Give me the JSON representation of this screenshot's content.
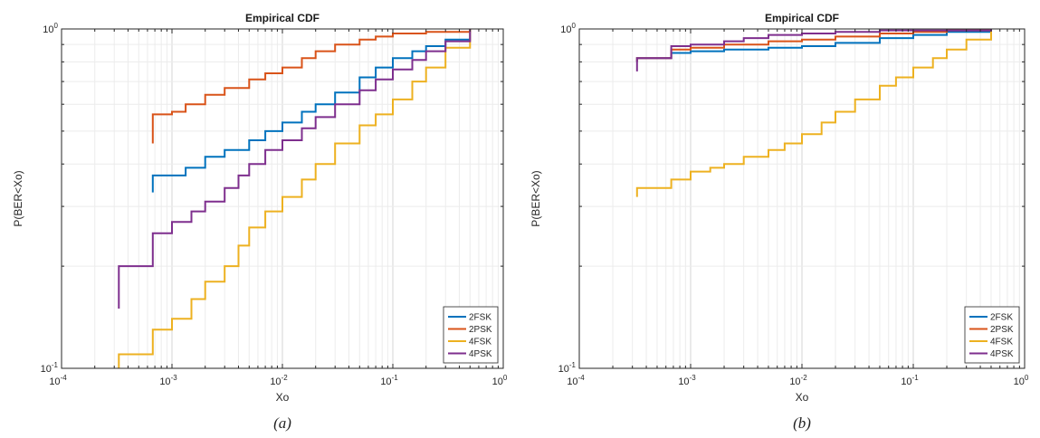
{
  "chart_data": [
    {
      "type": "line",
      "title": "Empirical CDF",
      "xlabel": "Xo",
      "ylabel": "P(BER<Xo)",
      "caption": "(a)",
      "x_scale": "log",
      "y_scale": "log",
      "xlim": [
        0.0001,
        1
      ],
      "ylim": [
        0.1,
        1
      ],
      "x_ticks": [
        {
          "base": "10",
          "exp": "-4"
        },
        {
          "base": "10",
          "exp": "-3"
        },
        {
          "base": "10",
          "exp": "-2"
        },
        {
          "base": "10",
          "exp": "-1"
        },
        {
          "base": "10",
          "exp": "0"
        }
      ],
      "y_ticks": [
        {
          "base": "10",
          "exp": "-1"
        },
        {
          "base": "10",
          "exp": "0"
        }
      ],
      "grid": true,
      "legend_position": "bottom-right",
      "series": [
        {
          "name": "2FSK",
          "color": "#0072BD",
          "x": [
            0.00067,
            0.00067,
            0.00133,
            0.002,
            0.003,
            0.005,
            0.007,
            0.01,
            0.015,
            0.02,
            0.03,
            0.05,
            0.07,
            0.1,
            0.15,
            0.2,
            0.3,
            0.5
          ],
          "y": [
            0.33,
            0.37,
            0.39,
            0.42,
            0.44,
            0.47,
            0.5,
            0.53,
            0.57,
            0.6,
            0.65,
            0.72,
            0.77,
            0.82,
            0.86,
            0.89,
            0.93,
            1.0
          ]
        },
        {
          "name": "2PSK",
          "color": "#D95319",
          "x": [
            0.00067,
            0.00067,
            0.001,
            0.00133,
            0.002,
            0.003,
            0.005,
            0.007,
            0.01,
            0.015,
            0.02,
            0.03,
            0.05,
            0.07,
            0.1,
            0.2,
            0.5
          ],
          "y": [
            0.46,
            0.56,
            0.57,
            0.6,
            0.64,
            0.67,
            0.71,
            0.74,
            0.77,
            0.82,
            0.86,
            0.9,
            0.93,
            0.95,
            0.97,
            0.98,
            1.0
          ]
        },
        {
          "name": "4FSK",
          "color": "#EDB120",
          "x": [
            0.00033,
            0.00033,
            0.00067,
            0.001,
            0.0015,
            0.002,
            0.003,
            0.004,
            0.005,
            0.007,
            0.01,
            0.015,
            0.02,
            0.03,
            0.05,
            0.07,
            0.1,
            0.15,
            0.2,
            0.3,
            0.5
          ],
          "y": [
            0.1,
            0.11,
            0.13,
            0.14,
            0.16,
            0.18,
            0.2,
            0.23,
            0.26,
            0.29,
            0.32,
            0.36,
            0.4,
            0.46,
            0.52,
            0.56,
            0.62,
            0.7,
            0.77,
            0.88,
            1.0
          ]
        },
        {
          "name": "4PSK",
          "color": "#7E2F8E",
          "x": [
            0.00033,
            0.00033,
            0.00067,
            0.001,
            0.0015,
            0.002,
            0.003,
            0.004,
            0.005,
            0.007,
            0.01,
            0.015,
            0.02,
            0.03,
            0.05,
            0.07,
            0.1,
            0.15,
            0.2,
            0.3,
            0.5
          ],
          "y": [
            0.15,
            0.2,
            0.25,
            0.27,
            0.29,
            0.31,
            0.34,
            0.37,
            0.4,
            0.44,
            0.47,
            0.51,
            0.55,
            0.6,
            0.66,
            0.71,
            0.76,
            0.81,
            0.86,
            0.92,
            1.0
          ]
        }
      ]
    },
    {
      "type": "line",
      "title": "Empirical CDF",
      "xlabel": "Xo",
      "ylabel": "P(BER<Xo)",
      "caption": "(b)",
      "x_scale": "log",
      "y_scale": "log",
      "xlim": [
        0.0001,
        1
      ],
      "ylim": [
        0.1,
        1
      ],
      "x_ticks": [
        {
          "base": "10",
          "exp": "-4"
        },
        {
          "base": "10",
          "exp": "-3"
        },
        {
          "base": "10",
          "exp": "-2"
        },
        {
          "base": "10",
          "exp": "-1"
        },
        {
          "base": "10",
          "exp": "0"
        }
      ],
      "y_ticks": [
        {
          "base": "10",
          "exp": "-1"
        },
        {
          "base": "10",
          "exp": "0"
        }
      ],
      "grid": true,
      "legend_position": "bottom-right",
      "series": [
        {
          "name": "2FSK",
          "color": "#0072BD",
          "x": [
            0.00033,
            0.00033,
            0.00067,
            0.001,
            0.002,
            0.005,
            0.01,
            0.02,
            0.05,
            0.1,
            0.2,
            0.5
          ],
          "y": [
            0.8,
            0.82,
            0.85,
            0.86,
            0.87,
            0.88,
            0.89,
            0.91,
            0.94,
            0.96,
            0.98,
            1.0
          ]
        },
        {
          "name": "2PSK",
          "color": "#D95319",
          "x": [
            0.00033,
            0.00033,
            0.00067,
            0.001,
            0.002,
            0.005,
            0.01,
            0.02,
            0.05,
            0.1,
            0.2,
            0.5
          ],
          "y": [
            0.8,
            0.82,
            0.87,
            0.88,
            0.9,
            0.92,
            0.93,
            0.95,
            0.97,
            0.98,
            0.99,
            1.0
          ]
        },
        {
          "name": "4FSK",
          "color": "#EDB120",
          "x": [
            0.00033,
            0.00033,
            0.00067,
            0.001,
            0.0015,
            0.002,
            0.003,
            0.005,
            0.007,
            0.01,
            0.015,
            0.02,
            0.03,
            0.05,
            0.07,
            0.1,
            0.15,
            0.2,
            0.3,
            0.5
          ],
          "y": [
            0.32,
            0.34,
            0.36,
            0.38,
            0.39,
            0.4,
            0.42,
            0.44,
            0.46,
            0.49,
            0.53,
            0.57,
            0.62,
            0.68,
            0.72,
            0.77,
            0.82,
            0.87,
            0.93,
            1.0
          ]
        },
        {
          "name": "4PSK",
          "color": "#7E2F8E",
          "x": [
            0.00033,
            0.00033,
            0.00067,
            0.001,
            0.002,
            0.003,
            0.005,
            0.01,
            0.02,
            0.05,
            0.5
          ],
          "y": [
            0.75,
            0.82,
            0.89,
            0.9,
            0.92,
            0.94,
            0.96,
            0.97,
            0.98,
            0.99,
            1.0
          ]
        }
      ]
    }
  ]
}
